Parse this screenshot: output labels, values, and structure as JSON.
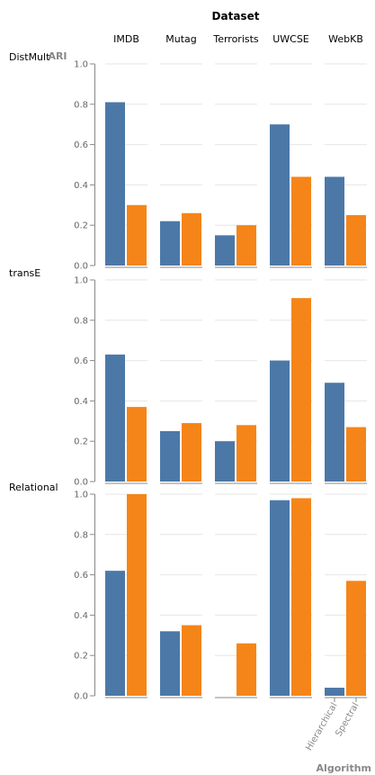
{
  "chart_data": {
    "type": "bar",
    "column_title": "Dataset",
    "y_title": "ARI",
    "x_title": "Algorithm",
    "ylim": [
      0,
      1
    ],
    "y_ticks": [
      "0.0",
      "0.2",
      "0.4",
      "0.6",
      "0.8",
      "1.0"
    ],
    "grid": true,
    "columns": [
      "IMDB",
      "Mutag",
      "Terrorists",
      "UWCSE",
      "WebKB"
    ],
    "rows": [
      "DistMult",
      "transE",
      "Relational"
    ],
    "categories": [
      "Hierarchical",
      "Spectral"
    ],
    "colors": {
      "Hierarchical": "#4c78a8",
      "Spectral": "#f58518"
    },
    "values": {
      "DistMult": {
        "IMDB": [
          0.81,
          0.3
        ],
        "Mutag": [
          0.22,
          0.26
        ],
        "Terrorists": [
          0.15,
          0.2
        ],
        "UWCSE": [
          0.7,
          0.44
        ],
        "WebKB": [
          0.44,
          0.25
        ]
      },
      "transE": {
        "IMDB": [
          0.63,
          0.37
        ],
        "Mutag": [
          0.25,
          0.29
        ],
        "Terrorists": [
          0.2,
          0.28
        ],
        "UWCSE": [
          0.6,
          0.91
        ],
        "WebKB": [
          0.49,
          0.27
        ]
      },
      "Relational": {
        "IMDB": [
          0.62,
          1.0
        ],
        "Mutag": [
          0.32,
          0.35
        ],
        "Terrorists": [
          0.0,
          0.26
        ],
        "UWCSE": [
          0.97,
          0.98
        ],
        "WebKB": [
          0.04,
          0.57
        ]
      }
    }
  }
}
